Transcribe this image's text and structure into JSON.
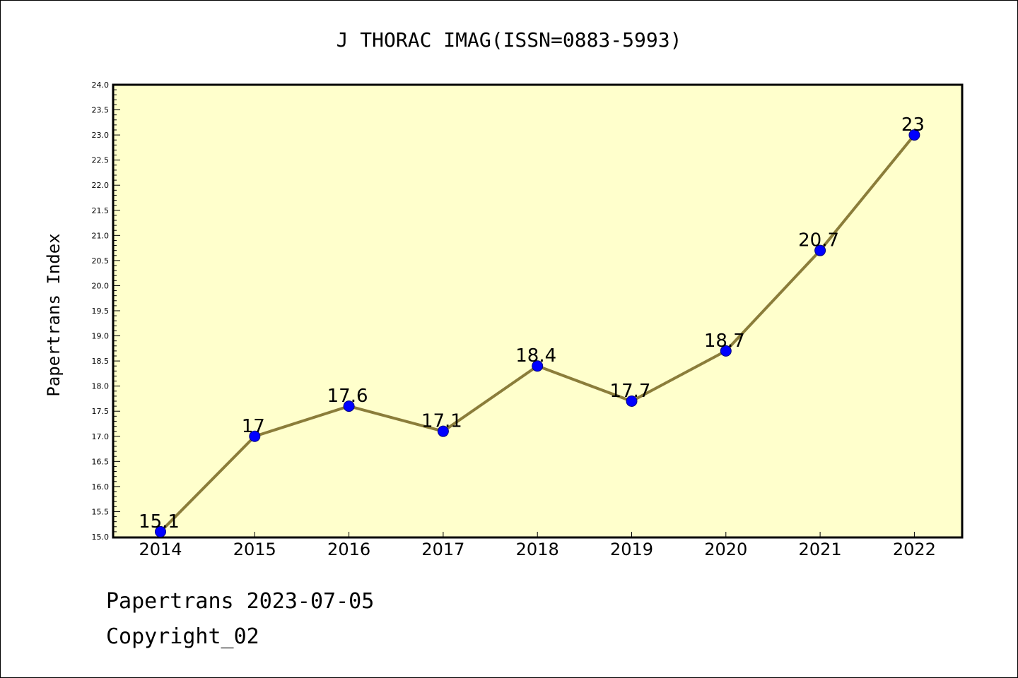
{
  "chart_data": {
    "type": "line",
    "title": "J THORAC IMAG(ISSN=0883-5993)",
    "xlabel": "",
    "ylabel": "Papertrans Index",
    "categories": [
      "2014",
      "2015",
      "2016",
      "2017",
      "2018",
      "2019",
      "2020",
      "2021",
      "2022"
    ],
    "series": [
      {
        "values": [
          15.1,
          17,
          17.6,
          17.1,
          18.4,
          17.7,
          18.7,
          20.7,
          23
        ],
        "data_labels": [
          "15.1",
          "17",
          "17.6",
          "17.1",
          "18.4",
          "17.7",
          "18.7",
          "20.7",
          "23"
        ]
      }
    ],
    "ylim": [
      15.0,
      24.0
    ],
    "yticks": [
      "15.0",
      "15.5",
      "16.0",
      "16.5",
      "17.0",
      "17.5",
      "18.0",
      "18.5",
      "19.0",
      "19.5",
      "20.0",
      "20.5",
      "21.0",
      "21.5",
      "22.0",
      "22.5",
      "23.0",
      "23.5",
      "24.0"
    ],
    "grid": false,
    "legend": "none",
    "colors": {
      "plot_background": "#ffffcc",
      "line": "#8b7d3a",
      "marker_fill": "#0000ff",
      "marker_edge": "#000080"
    }
  },
  "footer": {
    "date_line": "Papertrans 2023-07-05",
    "copyright_line": "Copyright_02"
  }
}
